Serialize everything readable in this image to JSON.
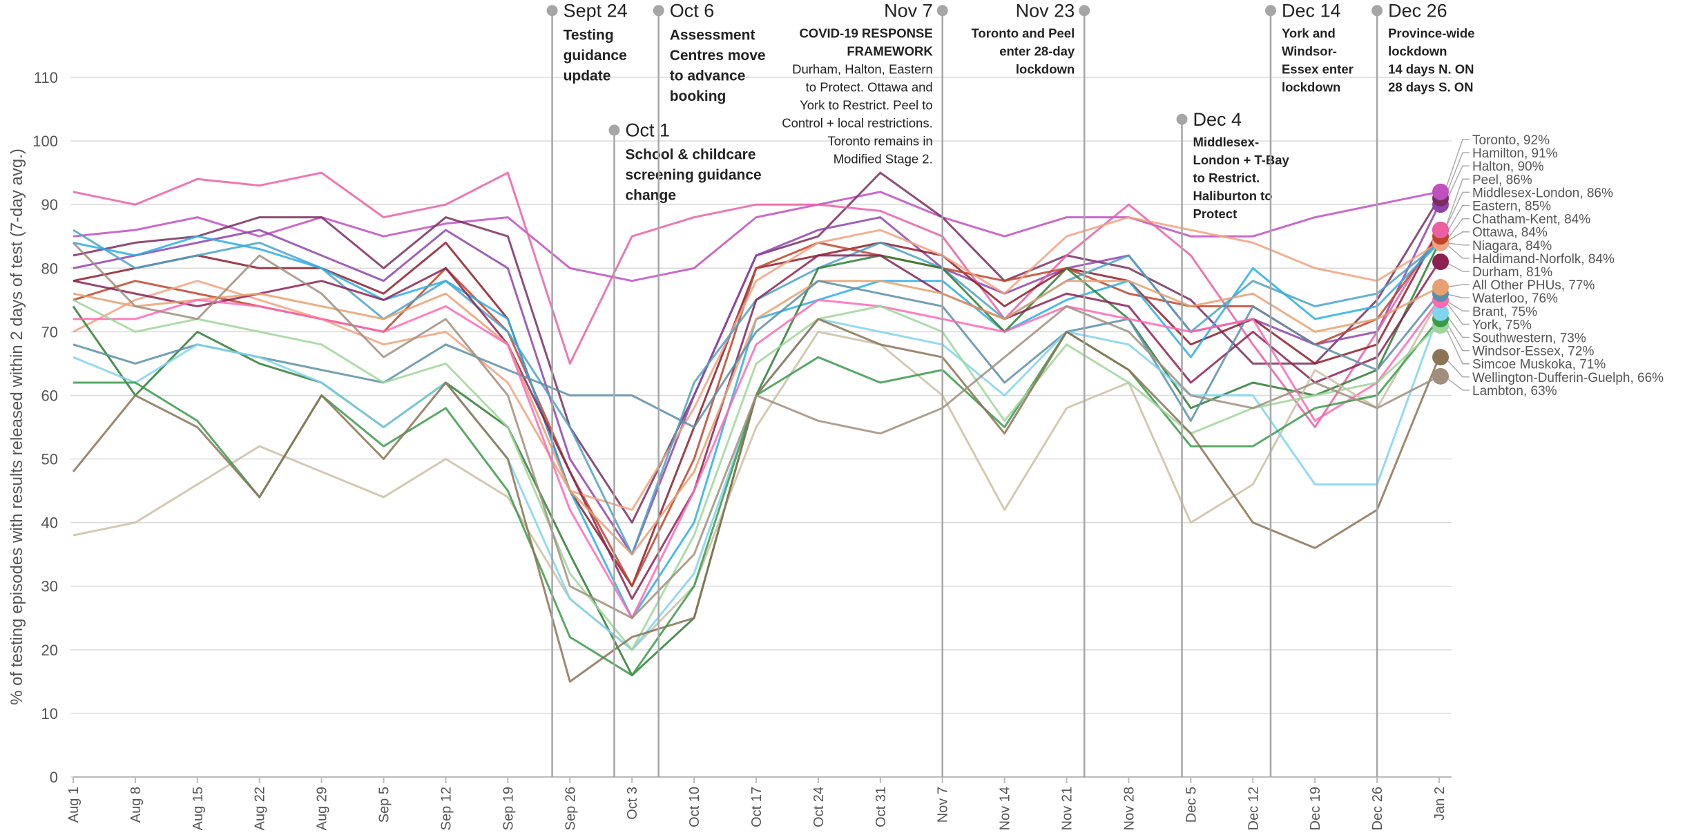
{
  "chart_data": {
    "type": "line",
    "y_axis_label": "% of testing episodes with results released within 2 days of test (7-day avg.)",
    "x": [
      "Aug 1",
      "Aug 8",
      "Aug 15",
      "Aug 22",
      "Aug 29",
      "Sep 5",
      "Sep 12",
      "Sep 19",
      "Sep 26",
      "Oct 3",
      "Oct 10",
      "Oct 17",
      "Oct 24",
      "Oct 31",
      "Nov 7",
      "Nov 14",
      "Nov 21",
      "Nov 28",
      "Dec 5",
      "Dec 12",
      "Dec 19",
      "Dec 26",
      "Jan 2"
    ],
    "ylim": [
      0,
      110
    ],
    "yticks": [
      0,
      10,
      20,
      30,
      40,
      50,
      60,
      70,
      80,
      90,
      100,
      110
    ],
    "grid": true,
    "series": [
      {
        "name": "Toronto, 92%",
        "color": "#c04fc0",
        "values": [
          85,
          86,
          88,
          85,
          88,
          85,
          87,
          88,
          80,
          78,
          80,
          88,
          90,
          92,
          88,
          85,
          88,
          88,
          85,
          85,
          88,
          90,
          92
        ]
      },
      {
        "name": "Hamilton, 91%",
        "color": "#7a2e5e",
        "values": [
          82,
          84,
          85,
          88,
          88,
          80,
          88,
          85,
          55,
          40,
          60,
          82,
          85,
          95,
          88,
          78,
          82,
          80,
          75,
          65,
          65,
          75,
          91
        ]
      },
      {
        "name": "Halton, 90%",
        "color": "#8e44ad",
        "values": [
          80,
          82,
          84,
          86,
          82,
          78,
          86,
          80,
          50,
          35,
          60,
          82,
          86,
          88,
          80,
          76,
          80,
          82,
          70,
          72,
          68,
          70,
          90
        ]
      },
      {
        "name": "Peel, 86%",
        "color": "#ec5fa3",
        "values": [
          92,
          90,
          94,
          93,
          95,
          88,
          90,
          95,
          65,
          85,
          88,
          90,
          90,
          89,
          85,
          72,
          82,
          90,
          82,
          68,
          55,
          70,
          86
        ]
      },
      {
        "name": "Middlesex-London, 86%",
        "color": "#8e1c2c",
        "values": [
          78,
          80,
          82,
          80,
          80,
          76,
          84,
          72,
          45,
          30,
          55,
          80,
          82,
          84,
          82,
          74,
          80,
          78,
          68,
          72,
          65,
          68,
          86
        ]
      },
      {
        "name": "Eastern, 85%",
        "color": "#c0442b",
        "values": [
          75,
          78,
          76,
          74,
          72,
          70,
          80,
          70,
          48,
          30,
          50,
          80,
          84,
          82,
          80,
          78,
          80,
          76,
          74,
          74,
          68,
          72,
          85
        ]
      },
      {
        "name": "Chatham-Kent, 84%",
        "color": "#f2a27e",
        "values": [
          70,
          75,
          78,
          75,
          72,
          68,
          70,
          62,
          45,
          42,
          58,
          78,
          84,
          86,
          82,
          76,
          85,
          88,
          86,
          84,
          80,
          78,
          84
        ]
      },
      {
        "name": "Ottawa, 84%",
        "color": "#4aa3c8",
        "values": [
          86,
          80,
          82,
          84,
          80,
          72,
          78,
          70,
          55,
          35,
          62,
          75,
          80,
          84,
          80,
          72,
          78,
          82,
          70,
          78,
          74,
          76,
          84
        ]
      },
      {
        "name": "Niagara, 84%",
        "color": "#2aaee6",
        "values": [
          84,
          82,
          85,
          83,
          80,
          75,
          78,
          72,
          45,
          25,
          40,
          72,
          75,
          78,
          78,
          70,
          75,
          78,
          66,
          80,
          72,
          74,
          84
        ]
      },
      {
        "name": "Haldimand-Norfolk, 84%",
        "color": "#2e7d32",
        "values": [
          74,
          60,
          70,
          65,
          62,
          55,
          62,
          55,
          35,
          16,
          25,
          60,
          80,
          82,
          80,
          70,
          80,
          72,
          58,
          62,
          60,
          64,
          84
        ]
      },
      {
        "name": "Durham, 81%",
        "color": "#8b2252",
        "values": [
          78,
          76,
          74,
          76,
          78,
          75,
          80,
          68,
          48,
          28,
          45,
          75,
          82,
          82,
          76,
          72,
          76,
          74,
          62,
          70,
          62,
          66,
          81
        ]
      },
      {
        "name": "All Other PHUs, 77%",
        "color": "#e8a070",
        "values": [
          76,
          74,
          75,
          76,
          74,
          72,
          76,
          68,
          45,
          35,
          48,
          72,
          78,
          78,
          76,
          72,
          78,
          78,
          74,
          76,
          70,
          72,
          77
        ]
      },
      {
        "name": "Waterloo, 76%",
        "color": "#5b8fa8",
        "values": [
          68,
          65,
          68,
          66,
          64,
          62,
          68,
          64,
          60,
          60,
          55,
          70,
          78,
          76,
          74,
          62,
          70,
          72,
          56,
          74,
          68,
          64,
          76
        ]
      },
      {
        "name": "Brant, 75%",
        "color": "#ff69b4",
        "values": [
          72,
          72,
          75,
          74,
          72,
          70,
          74,
          68,
          42,
          25,
          45,
          68,
          75,
          74,
          72,
          70,
          74,
          72,
          70,
          72,
          56,
          62,
          75
        ]
      },
      {
        "name": "York, 75%",
        "color": "#cbbfa4",
        "values": [
          38,
          40,
          46,
          52,
          48,
          44,
          50,
          44,
          28,
          20,
          30,
          55,
          70,
          68,
          60,
          42,
          58,
          62,
          40,
          46,
          64,
          58,
          75
        ]
      },
      {
        "name": "Southwestern, 73%",
        "color": "#7fd4ee",
        "values": [
          66,
          62,
          68,
          66,
          62,
          55,
          62,
          50,
          28,
          20,
          32,
          60,
          72,
          70,
          68,
          60,
          70,
          68,
          60,
          60,
          46,
          46,
          73
        ]
      },
      {
        "name": "Windsor-Essex, 72%",
        "color": "#3a9a4a",
        "values": [
          62,
          62,
          56,
          44,
          60,
          52,
          58,
          45,
          22,
          16,
          30,
          60,
          66,
          62,
          64,
          55,
          70,
          64,
          52,
          52,
          58,
          60,
          72
        ]
      },
      {
        "name": "Simcoe Muskoka, 71%",
        "color": "#9fd69a",
        "values": [
          75,
          70,
          72,
          70,
          68,
          62,
          65,
          55,
          32,
          20,
          38,
          65,
          72,
          74,
          70,
          56,
          68,
          62,
          54,
          58,
          60,
          62,
          71
        ]
      },
      {
        "name": "Wellington-Dufferin-Guelph, 66%",
        "color": "#8b7355",
        "values": [
          48,
          60,
          55,
          44,
          60,
          50,
          62,
          50,
          15,
          22,
          25,
          60,
          72,
          68,
          66,
          54,
          70,
          64,
          54,
          40,
          36,
          42,
          66
        ]
      },
      {
        "name": "Lambton, 63%",
        "color": "#a08f7e",
        "values": [
          84,
          74,
          72,
          82,
          76,
          66,
          72,
          60,
          30,
          25,
          35,
          60,
          56,
          54,
          58,
          66,
          74,
          70,
          60,
          58,
          62,
          58,
          63
        ]
      }
    ],
    "annotations": [
      {
        "date": "Sept 24",
        "align": "left",
        "bold_lines": [
          "Testing",
          "guidance",
          "update"
        ]
      },
      {
        "date": "Oct 1",
        "align": "left",
        "bold_lines": [
          "School & childcare",
          "screening guidance",
          "change"
        ]
      },
      {
        "date": "Oct 6",
        "align": "left",
        "bold_lines": [
          "Assessment",
          "Centres move",
          "to advance",
          "booking"
        ]
      },
      {
        "date": "Nov 7",
        "align": "right",
        "bold_lines": [
          "COVID-19 RESPONSE",
          "FRAMEWORK"
        ],
        "lines": [
          "Durham, Halton, Eastern",
          "to Protect. Ottawa and",
          "York to Restrict. Peel to",
          "Control + local restrictions.",
          "Toronto remains in",
          "Modified Stage 2."
        ]
      },
      {
        "date": "Nov 23",
        "align": "right",
        "bold_lines": [
          "Toronto and Peel",
          "enter 28-day",
          "lockdown"
        ]
      },
      {
        "date": "Dec 4",
        "align": "left",
        "bold_lines": [
          "Middlesex-",
          "London + T-Bay",
          "to Restrict.",
          "Haliburton to",
          "Protect"
        ]
      },
      {
        "date": "Dec 14",
        "align": "left",
        "bold_lines": [
          "York and",
          "Windsor-",
          "Essex enter",
          "lockdown"
        ]
      },
      {
        "date": "Dec 26",
        "align": "left",
        "bold_lines": [
          "Province-wide",
          "lockdown",
          "14 days N. ON",
          "28 days S. ON"
        ]
      }
    ]
  }
}
